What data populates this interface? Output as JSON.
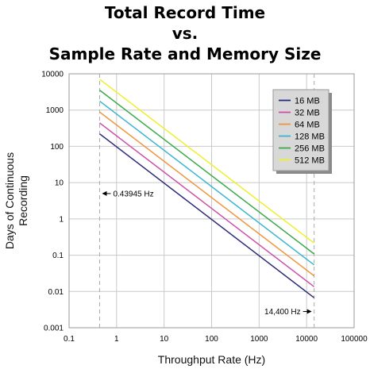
{
  "title_lines": [
    "Total Record Time",
    "vs.",
    "Sample Rate and Memory Size"
  ],
  "chart_data": {
    "type": "line",
    "xlabel": "Throughput Rate (Hz)",
    "ylabel_lines": [
      "Days of Continuous",
      "Recording"
    ],
    "xscale": "log",
    "yscale": "log",
    "xlim": [
      0.1,
      100000
    ],
    "ylim": [
      0.001,
      10000
    ],
    "x_ticks": [
      0.1,
      1,
      10,
      100,
      1000,
      10000,
      100000
    ],
    "x_tick_labels": [
      "0.1",
      "1",
      "10",
      "100",
      "1000",
      "10000",
      "100000"
    ],
    "y_ticks": [
      0.001,
      0.01,
      0.1,
      1,
      10,
      100,
      1000,
      10000
    ],
    "y_tick_labels": [
      "0.001",
      "0.01",
      "0.1",
      "1",
      "10",
      "100",
      "1000",
      "10000"
    ],
    "grid": true,
    "legend_position": "top-right",
    "x": [
      0.43945,
      14400
    ],
    "series": [
      {
        "name": "16 MB",
        "color": "#2b2a7a",
        "values": [
          221,
          0.0067
        ]
      },
      {
        "name": "32 MB",
        "color": "#cc4fa8",
        "values": [
          442,
          0.0135
        ]
      },
      {
        "name": "64 MB",
        "color": "#f0953a",
        "values": [
          884,
          0.027
        ]
      },
      {
        "name": "128 MB",
        "color": "#39b6d2",
        "values": [
          1768,
          0.054
        ]
      },
      {
        "name": "256 MB",
        "color": "#3aaa4a",
        "values": [
          3536,
          0.108
        ]
      },
      {
        "name": "512 MB",
        "color": "#eef02a",
        "values": [
          7073,
          0.216
        ]
      }
    ],
    "annotations": [
      {
        "text": "0.43945 Hz",
        "x": 0.43945,
        "y": 5
      },
      {
        "text": "14,400 Hz",
        "x": 14400,
        "y": 0.0028
      }
    ]
  }
}
